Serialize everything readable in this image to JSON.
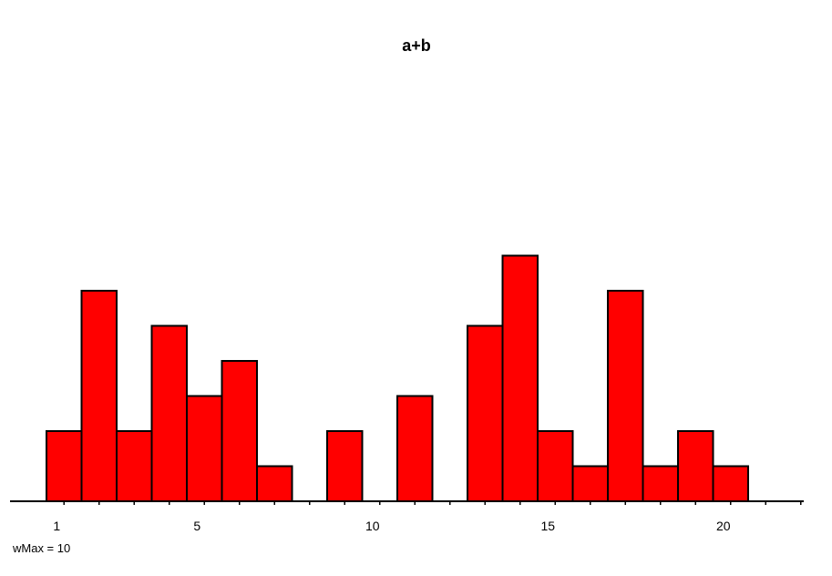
{
  "chart_data": {
    "type": "bar",
    "title": "a+b",
    "xlabel": "",
    "ylabel": "",
    "note": "wMax = 10",
    "categories": [
      1,
      2,
      3,
      4,
      5,
      6,
      7,
      8,
      9,
      10,
      11,
      12,
      13,
      14,
      15,
      16,
      17,
      18,
      19,
      20,
      21,
      22
    ],
    "values": [
      2,
      6,
      2,
      5,
      3,
      4,
      1,
      0,
      2,
      0,
      3,
      0,
      5,
      7,
      2,
      1,
      6,
      1,
      2,
      1,
      0,
      0
    ],
    "x_tick_labels": [
      "1",
      "5",
      "10",
      "15",
      "20"
    ],
    "x_tick_values": [
      1,
      5,
      10,
      15,
      20
    ],
    "ylim": [
      0,
      10
    ],
    "bar_color": "#ff0000",
    "edge_color": "#000000",
    "grid": false,
    "legend": "none"
  }
}
